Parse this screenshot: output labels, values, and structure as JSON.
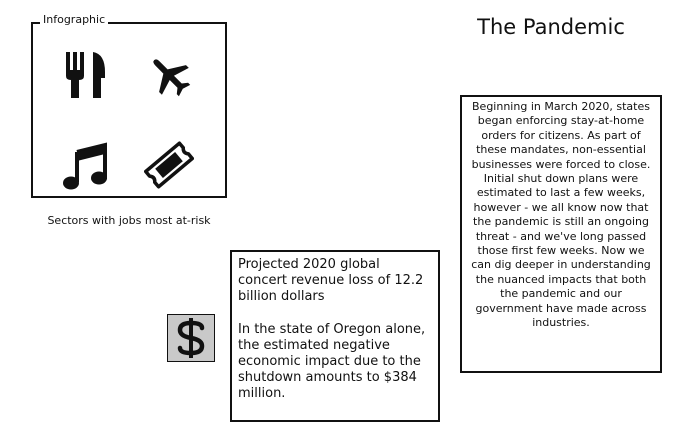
{
  "infographic": {
    "legend": "Infographic",
    "caption": "Sectors with jobs most at-risk",
    "icons": [
      "utensils-icon",
      "airplane-icon",
      "music-note-icon",
      "ticket-icon"
    ]
  },
  "title": "The Pandemic",
  "story": {
    "text": "Beginning in March 2020, states began enforcing stay-at-home orders for citizens. As part of these mandates, non-essential businesses were forced to close. Initial shut down plans were estimated to last a few weeks, however - we all know now that the pandemic is still an ongoing threat - and we've long passed those first few weeks. Now we can dig deeper in understanding the nuanced impacts that both the pandemic and our government have made across industries."
  },
  "stats": {
    "line1": "Projected 2020 global concert revenue loss of 12.2 billion dollars",
    "line2": "In the state of Oregon alone, the estimated negative economic impact due to the shutdown amounts to $384 million."
  },
  "dollar": {
    "icon": "dollar-sign-icon",
    "tile_color": "#c9c9c9"
  }
}
